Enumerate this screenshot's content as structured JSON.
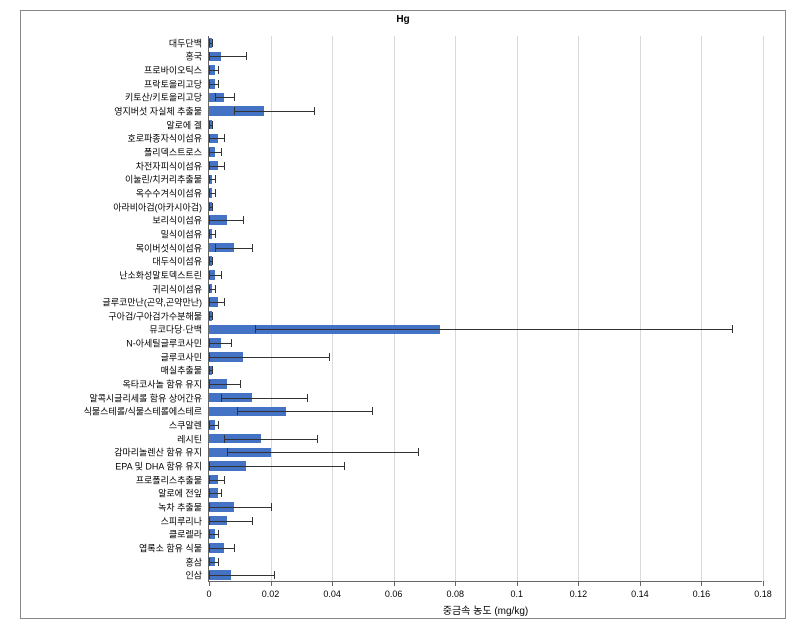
{
  "chart": {
    "type": "bar-horizontal",
    "title": "Hg",
    "title_fontsize": 10,
    "title_fontweight": "bold",
    "xaxis_title": "중금속 농도 (mg/kg)",
    "xaxis_title_fontsize": 10,
    "xlim": [
      0,
      0.18
    ],
    "xtick_step": 0.02,
    "xticks": [
      0,
      0.02,
      0.04,
      0.06,
      0.08,
      0.1,
      0.12,
      0.14,
      0.16,
      0.18
    ],
    "xtick_fontsize": 9,
    "ytick_fontsize": 9,
    "background_color": "#ffffff",
    "grid_color": "#d9d9d9",
    "bar_color": "#4472c4",
    "error_color": "#333333",
    "axis_color": "#666666",
    "bar_width": 0.7,
    "categories": [
      "대두단백",
      "홍국",
      "프로바이오틱스",
      "프락토올리고당",
      "키토산/키토올리고당",
      "영지버섯 자실체 추출물",
      "알로에 겔",
      "호로파종자식이섬유",
      "폴리덱스트로스",
      "차전자피식이섬유",
      "이눌린/치커리추출물",
      "옥수수겨식이섬유",
      "아라비아검(아카시아검)",
      "보리식이섬유",
      "밀식이섬유",
      "목이버섯식이섬유",
      "대두식이섬유",
      "난소화성말토덱스트린",
      "귀리식이섬유",
      "글루코만난(곤약,곤약만난)",
      "구아검/구아검가수분해물",
      "뮤코다당·단백",
      "N-아세틸글루코사민",
      "글루코사민",
      "매실추출물",
      "옥타코사놀 함유 유지",
      "알콕시글리세롤 함유 상어간유",
      "식물스테롤/식물스테롤에스테르",
      "스쿠알렌",
      "레시틴",
      "감마리놀렌산 함유 유지",
      "EPA 및 DHA 함유 유지",
      "프로폴리스추출물",
      "알로에 전잎",
      "녹차 추출물",
      "스피루리나",
      "클로렐라",
      "엽록소 함유 식물",
      "홍삼",
      "인삼"
    ],
    "values": [
      0.001,
      0.004,
      0.002,
      0.002,
      0.005,
      0.018,
      0.001,
      0.003,
      0.002,
      0.003,
      0.001,
      0.001,
      0.001,
      0.006,
      0.001,
      0.008,
      0.001,
      0.002,
      0.001,
      0.003,
      0.001,
      0.075,
      0.004,
      0.011,
      0.001,
      0.006,
      0.014,
      0.025,
      0.002,
      0.017,
      0.02,
      0.012,
      0.003,
      0.003,
      0.008,
      0.006,
      0.002,
      0.005,
      0.002,
      0.007
    ],
    "err_low": [
      0.001,
      0.004,
      0.002,
      0.002,
      0.003,
      0.01,
      0.001,
      0.003,
      0.002,
      0.003,
      0.001,
      0.001,
      0.001,
      0.006,
      0.001,
      0.006,
      0.001,
      0.002,
      0.001,
      0.003,
      0.001,
      0.06,
      0.004,
      0.011,
      0.001,
      0.006,
      0.01,
      0.016,
      0.002,
      0.012,
      0.014,
      0.012,
      0.003,
      0.003,
      0.008,
      0.006,
      0.002,
      0.005,
      0.002,
      0.007
    ],
    "err_high": [
      0.0,
      0.008,
      0.001,
      0.001,
      0.003,
      0.016,
      0.0,
      0.002,
      0.002,
      0.002,
      0.001,
      0.001,
      0.0,
      0.005,
      0.001,
      0.006,
      0.0,
      0.002,
      0.001,
      0.002,
      0.0,
      0.095,
      0.003,
      0.028,
      0.0,
      0.004,
      0.018,
      0.028,
      0.001,
      0.018,
      0.048,
      0.032,
      0.002,
      0.001,
      0.012,
      0.008,
      0.001,
      0.003,
      0.001,
      0.014
    ]
  }
}
